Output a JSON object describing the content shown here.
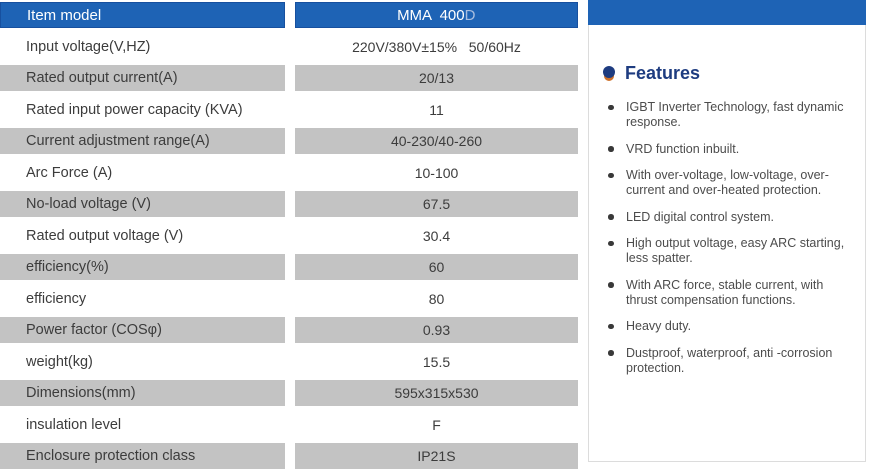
{
  "table": {
    "header": {
      "label": "Item model",
      "model_prefix": "MMA  400",
      "model_suffix": "D"
    },
    "rows": [
      {
        "label": "Input voltage(V,HZ)",
        "value": "220V/380V±15%   50/60Hz",
        "shaded": false
      },
      {
        "label": "Rated output current(A)",
        "value": "20/13",
        "shaded": true
      },
      {
        "label": "Rated input power capacity (KVA)",
        "value": "11",
        "shaded": false
      },
      {
        "label": "Current adjustment range(A)",
        "value": "40-230/40-260",
        "shaded": true
      },
      {
        "label": "Arc Force (A)",
        "value": "10-100",
        "shaded": false
      },
      {
        "label": "No-load voltage (V)",
        "value": "67.5",
        "shaded": true
      },
      {
        "label": "Rated output voltage (V)",
        "value": "30.4",
        "shaded": false
      },
      {
        "label": "efficiency(%)",
        "value": "60",
        "shaded": true
      },
      {
        "label": "efficiency",
        "value": "80",
        "shaded": false
      },
      {
        "label": "Power factor (COSφ)",
        "value": "0.93",
        "shaded": true
      },
      {
        "label": "weight(kg)",
        "value": "15.5",
        "shaded": false
      },
      {
        "label": "Dimensions(mm)",
        "value": "595x315x530",
        "shaded": true
      },
      {
        "label": "insulation level",
        "value": "F",
        "shaded": false
      },
      {
        "label": "Enclosure protection class",
        "value": "IP21S",
        "shaded": true
      }
    ]
  },
  "features": {
    "title": "Features",
    "items": [
      "IGBT Inverter Technology, fast dynamic response.",
      "VRD function inbuilt.",
      "With over-voltage, low-voltage, over-current and over-heated protection.",
      "LED digital control system.",
      "High output voltage, easy ARC starting, less spatter.",
      "With ARC force, stable current,  with thrust compensation functions.",
      "Heavy duty.",
      "Dustproof, waterproof, anti -corrosion protection."
    ]
  },
  "colors": {
    "header_blue": "#1e63b5",
    "header_border": "#17509f",
    "row_gray": "#c3c3c3",
    "features_navy": "#1e3c80",
    "features_dot_orange": "#cd7029",
    "panel_border": "#dcdcdc"
  }
}
